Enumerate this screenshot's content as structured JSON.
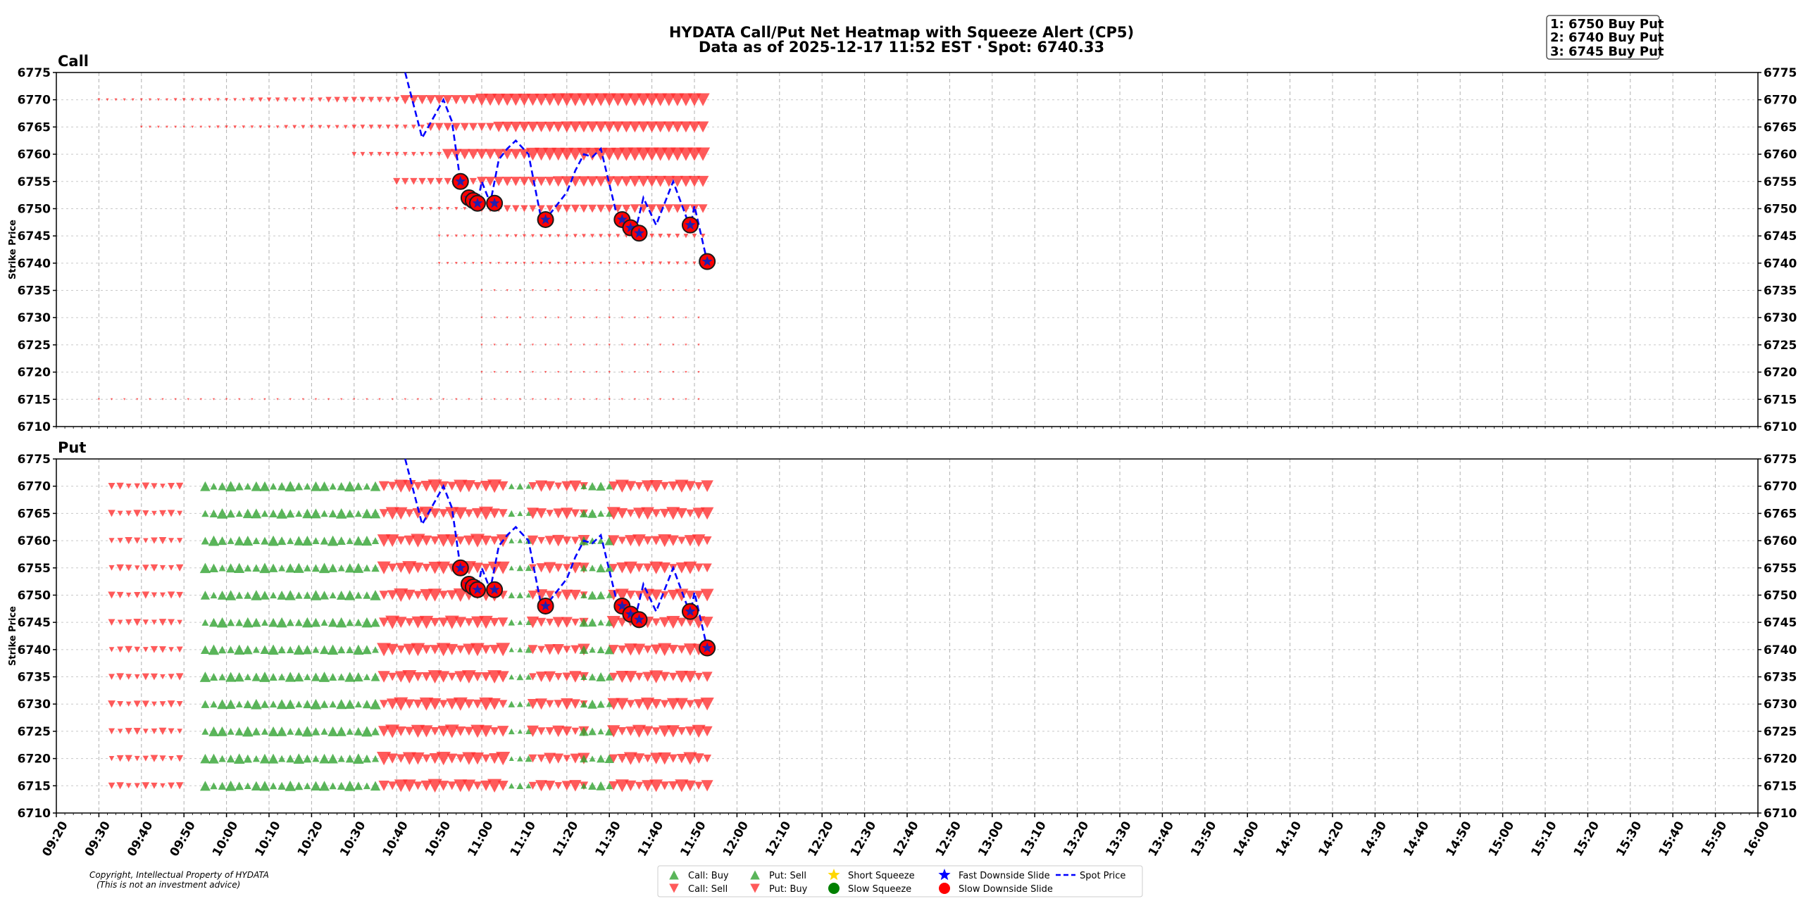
{
  "title_line1": "HYDATA Call/Put Net Heatmap with Squeeze Alert (CP5)",
  "title_line2": "Data as of 2025-12-17 11:52 EST · Spot: 6740.33",
  "alerts": [
    "1: 6750 Buy Put",
    "2: 6740 Buy Put",
    "3: 6745 Buy Put"
  ],
  "copyright_line1": "Copyright, Intellectual Property of HYDATA",
  "copyright_line2": "(This is not an investment advice)",
  "legend": [
    {
      "label": "Call: Buy",
      "marker": "triangle-up",
      "color": "#2ca02c"
    },
    {
      "label": "Call: Sell",
      "marker": "triangle-down",
      "color": "#ff2b2b"
    },
    {
      "label": "Put: Sell",
      "marker": "triangle-up",
      "color": "#2ca02c"
    },
    {
      "label": "Put: Buy",
      "marker": "triangle-down",
      "color": "#ff2b2b"
    },
    {
      "label": "Short Squeeze",
      "marker": "star",
      "color": "#ffd700"
    },
    {
      "label": "Slow Squeeze",
      "marker": "circle",
      "color": "#008000"
    },
    {
      "label": "Fast Downside Slide",
      "marker": "star",
      "color": "#0000ff"
    },
    {
      "label": "Slow Downside Slide",
      "marker": "circle",
      "color": "#ff0000"
    },
    {
      "label": "Spot Price",
      "marker": "dashed-line",
      "color": "#0000ff"
    }
  ],
  "chart_data": {
    "type": "heatmap",
    "x_axis": {
      "ticks": [
        "09:20",
        "09:30",
        "09:40",
        "09:50",
        "10:00",
        "10:10",
        "10:20",
        "10:30",
        "10:40",
        "10:50",
        "11:00",
        "11:10",
        "11:20",
        "11:30",
        "11:40",
        "11:50",
        "12:00",
        "12:10",
        "12:20",
        "12:30",
        "12:40",
        "12:50",
        "13:00",
        "13:10",
        "13:20",
        "13:30",
        "13:40",
        "13:50",
        "14:00",
        "14:10",
        "14:20",
        "14:30",
        "14:40",
        "14:50",
        "15:00",
        "15:10",
        "15:20",
        "15:30",
        "15:40",
        "15:50",
        "16:00"
      ],
      "range": [
        "09:20",
        "16:00"
      ]
    },
    "y_axis": {
      "label": "Strike Price",
      "ticks": [
        6710,
        6715,
        6720,
        6725,
        6730,
        6735,
        6740,
        6745,
        6750,
        6755,
        6760,
        6765,
        6770,
        6775
      ],
      "range": [
        6710,
        6775
      ]
    },
    "grid": true,
    "colors": {
      "buy": "#2ca02c",
      "sell": "#ff2b2b",
      "spot": "#0000ff",
      "slide_circle": "#ff0000"
    },
    "panels": [
      {
        "name": "Call",
        "strikes": [
          6770,
          6765,
          6760,
          6755,
          6750,
          6745,
          6740,
          6735,
          6730,
          6725,
          6720,
          6715
        ],
        "note": "net size per strike and time, positive = up marker, negative = down marker, 0 to 1",
        "intensity_profile": [
          {
            "strike": 6770,
            "start": "09:30",
            "levels": [
              0.05,
              0.1,
              0.2,
              0.3,
              0.6,
              0.85,
              0.9,
              0.9
            ]
          },
          {
            "strike": 6765,
            "start": "09:40",
            "levels": [
              0.03,
              0.08,
              0.15,
              0.2,
              0.5,
              0.7,
              0.75,
              0.75
            ]
          },
          {
            "strike": 6760,
            "start": "10:30",
            "levels": [
              0.2,
              0.7,
              0.9,
              0.95
            ]
          },
          {
            "strike": 6755,
            "start": "10:40",
            "levels": [
              0.4,
              0.6,
              0.7,
              0.75
            ]
          },
          {
            "strike": 6750,
            "start": "10:40",
            "levels": [
              0.1,
              0.4,
              0.5,
              0.55
            ]
          },
          {
            "strike": 6745,
            "start": "10:50",
            "levels": [
              0.05,
              0.1,
              0.15,
              0.2
            ]
          },
          {
            "strike": 6740,
            "start": "10:50",
            "levels": [
              0.03,
              0.05,
              0.05,
              0.1
            ]
          }
        ]
      },
      {
        "name": "Put",
        "strikes": [
          6770,
          6765,
          6760,
          6755,
          6750,
          6745,
          6740,
          6735,
          6730,
          6725,
          6720,
          6715
        ],
        "segments": [
          {
            "from": "09:33",
            "to": "09:50",
            "side": "sell",
            "level": 0.35
          },
          {
            "from": "09:55",
            "to": "10:35",
            "side": "buy",
            "level": 0.6
          },
          {
            "from": "10:37",
            "to": "11:05",
            "side": "sell",
            "level": 0.85
          },
          {
            "from": "11:07",
            "to": "11:12",
            "side": "buy",
            "level": 0.3
          },
          {
            "from": "11:12",
            "to": "11:24",
            "side": "sell",
            "level": 0.7
          },
          {
            "from": "11:24",
            "to": "11:30",
            "side": "buy",
            "level": 0.5
          },
          {
            "from": "11:31",
            "to": "11:53",
            "side": "sell",
            "level": 0.8
          }
        ]
      }
    ],
    "spot_price": {
      "name": "Spot Price",
      "points": [
        [
          "10:42",
          6775
        ],
        [
          "10:46",
          6763
        ],
        [
          "10:51",
          6770
        ],
        [
          "10:53",
          6766
        ],
        [
          "10:55",
          6755
        ],
        [
          "10:57",
          6752
        ],
        [
          "10:58",
          6751.5
        ],
        [
          "10:59",
          6751
        ],
        [
          "11:00",
          6755
        ],
        [
          "11:02",
          6751
        ],
        [
          "11:04",
          6759
        ],
        [
          "11:06",
          6761
        ],
        [
          "11:08",
          6762.5
        ],
        [
          "11:11",
          6760
        ],
        [
          "11:14",
          6748
        ],
        [
          "11:16",
          6749
        ],
        [
          "11:18",
          6751
        ],
        [
          "11:20",
          6753
        ],
        [
          "11:22",
          6757
        ],
        [
          "11:24",
          6760
        ],
        [
          "11:26",
          6759.5
        ],
        [
          "11:28",
          6761
        ],
        [
          "11:32",
          6748
        ],
        [
          "11:34",
          6746
        ],
        [
          "11:36",
          6745.5
        ],
        [
          "11:38",
          6752
        ],
        [
          "11:41",
          6747
        ],
        [
          "11:43",
          6751
        ],
        [
          "11:45",
          6755
        ],
        [
          "11:49",
          6746.5
        ],
        [
          "11:50",
          6750.5
        ],
        [
          "11:53",
          6740.3
        ]
      ]
    },
    "slow_downside_slide": [
      [
        "10:55",
        6755
      ],
      [
        "10:57",
        6752
      ],
      [
        "10:58",
        6751.5
      ],
      [
        "10:59",
        6751
      ],
      [
        "11:03",
        6751
      ],
      [
        "11:15",
        6748
      ],
      [
        "11:33",
        6748
      ],
      [
        "11:35",
        6746.5
      ],
      [
        "11:37",
        6745.5
      ],
      [
        "11:49",
        6747
      ],
      [
        "11:53",
        6740.3
      ]
    ]
  }
}
